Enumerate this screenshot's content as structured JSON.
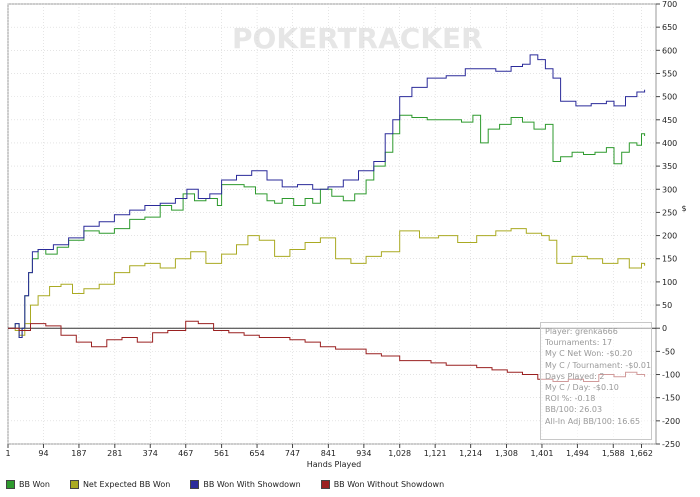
{
  "watermark": "POKERTRACKER",
  "chart_data": {
    "type": "line",
    "xlabel": "Hands Played",
    "ylabel": "$",
    "xlim": [
      1,
      1700
    ],
    "ylim": [
      -250,
      700
    ],
    "x_ticks": [
      1,
      94,
      187,
      281,
      374,
      467,
      561,
      654,
      747,
      841,
      934,
      1028,
      1121,
      1214,
      1308,
      1401,
      1494,
      1588,
      1662
    ],
    "x_tick_labels": [
      "1",
      "94",
      "187",
      "281",
      "374",
      "467",
      "561",
      "654",
      "747",
      "841",
      "934",
      "1,028",
      "1,121",
      "1,214",
      "1,308",
      "1,401",
      "1,494",
      "1,588",
      "1,662"
    ],
    "y_ticks": [
      -250,
      -200,
      -150,
      -100,
      -50,
      0,
      50,
      100,
      150,
      200,
      250,
      300,
      350,
      400,
      450,
      500,
      550,
      600,
      650,
      700
    ],
    "series": [
      {
        "name": "BB Won",
        "color": "#2e9a2e",
        "x": [
          1,
          20,
          30,
          38,
          45,
          55,
          65,
          80,
          100,
          130,
          160,
          200,
          240,
          280,
          320,
          360,
          400,
          430,
          460,
          490,
          520,
          550,
          561,
          580,
          620,
          650,
          680,
          700,
          720,
          750,
          780,
          800,
          820,
          850,
          880,
          910,
          940,
          960,
          990,
          1010,
          1028,
          1060,
          1100,
          1150,
          1190,
          1220,
          1240,
          1260,
          1290,
          1320,
          1350,
          1380,
          1410,
          1430,
          1450,
          1480,
          1510,
          1540,
          1570,
          1590,
          1610,
          1630,
          1650,
          1662,
          1670
        ],
        "values": [
          0,
          10,
          -20,
          0,
          70,
          120,
          150,
          170,
          160,
          175,
          190,
          210,
          205,
          215,
          235,
          240,
          265,
          255,
          290,
          275,
          280,
          265,
          310,
          310,
          305,
          290,
          275,
          270,
          280,
          265,
          280,
          270,
          300,
          285,
          275,
          290,
          320,
          350,
          380,
          420,
          460,
          455,
          450,
          450,
          445,
          460,
          400,
          430,
          440,
          455,
          445,
          430,
          440,
          360,
          370,
          380,
          375,
          380,
          390,
          355,
          380,
          400,
          395,
          420,
          415
        ]
      },
      {
        "name": "Net Expected BB Won",
        "color": "#aaaa22",
        "x": [
          1,
          20,
          30,
          45,
          60,
          80,
          110,
          140,
          170,
          200,
          240,
          280,
          320,
          360,
          400,
          440,
          480,
          520,
          561,
          600,
          630,
          660,
          700,
          740,
          780,
          820,
          860,
          900,
          940,
          980,
          1028,
          1080,
          1130,
          1180,
          1230,
          1280,
          1320,
          1360,
          1400,
          1420,
          1440,
          1480,
          1520,
          1560,
          1600,
          1630,
          1662,
          1670
        ],
        "values": [
          0,
          -5,
          -15,
          10,
          50,
          70,
          90,
          95,
          75,
          85,
          95,
          120,
          135,
          140,
          130,
          150,
          165,
          140,
          160,
          180,
          200,
          190,
          155,
          170,
          185,
          195,
          150,
          140,
          155,
          165,
          210,
          195,
          200,
          185,
          200,
          210,
          215,
          205,
          200,
          190,
          140,
          155,
          150,
          140,
          150,
          130,
          140,
          135
        ]
      },
      {
        "name": "BB Won With Showdown",
        "color": "#2b2b9a",
        "x": [
          1,
          20,
          30,
          38,
          45,
          55,
          65,
          80,
          120,
          160,
          200,
          240,
          280,
          320,
          360,
          400,
          440,
          470,
          500,
          530,
          561,
          600,
          640,
          680,
          720,
          760,
          800,
          840,
          880,
          920,
          960,
          990,
          1010,
          1028,
          1060,
          1100,
          1150,
          1200,
          1240,
          1280,
          1320,
          1350,
          1370,
          1390,
          1410,
          1430,
          1450,
          1490,
          1530,
          1570,
          1590,
          1620,
          1650,
          1670
        ],
        "values": [
          0,
          10,
          -20,
          0,
          70,
          120,
          165,
          170,
          180,
          195,
          220,
          230,
          245,
          255,
          265,
          270,
          280,
          300,
          280,
          290,
          320,
          330,
          340,
          320,
          305,
          310,
          300,
          305,
          320,
          340,
          360,
          420,
          450,
          500,
          520,
          540,
          545,
          560,
          560,
          555,
          565,
          570,
          590,
          580,
          560,
          540,
          490,
          480,
          485,
          490,
          480,
          500,
          510,
          515
        ]
      },
      {
        "name": "BB Won Without Showdown",
        "color": "#9a2020",
        "x": [
          1,
          30,
          60,
          100,
          140,
          180,
          220,
          260,
          300,
          340,
          380,
          420,
          467,
          500,
          540,
          580,
          620,
          660,
          700,
          740,
          780,
          820,
          860,
          900,
          940,
          980,
          1028,
          1070,
          1110,
          1150,
          1190,
          1230,
          1270,
          1310,
          1350,
          1390,
          1430,
          1470,
          1510,
          1550,
          1590,
          1620,
          1650,
          1670
        ],
        "values": [
          0,
          -5,
          10,
          5,
          -15,
          -30,
          -40,
          -25,
          -20,
          -30,
          -10,
          -5,
          15,
          10,
          -5,
          -10,
          -15,
          -20,
          -20,
          -25,
          -30,
          -40,
          -45,
          -45,
          -55,
          -60,
          -70,
          -70,
          -75,
          -80,
          -80,
          -85,
          -90,
          -95,
          -100,
          -110,
          -115,
          -110,
          -115,
          -100,
          -105,
          -95,
          -100,
          -105
        ]
      }
    ]
  },
  "stats": {
    "player": "Player: grenka666",
    "tournaments": "Tournaments: 17",
    "net_won": "My C Net Won: -$0.20",
    "per_tournament": "My C / Tournament: -$0.01",
    "days_played": "Days Played: 2",
    "per_day": "My C / Day: -$0.10",
    "roi": "ROI %: -0.18",
    "bb100": "BB/100: 26.03",
    "allin_bb100": "All-In Adj BB/100: 16.65"
  }
}
